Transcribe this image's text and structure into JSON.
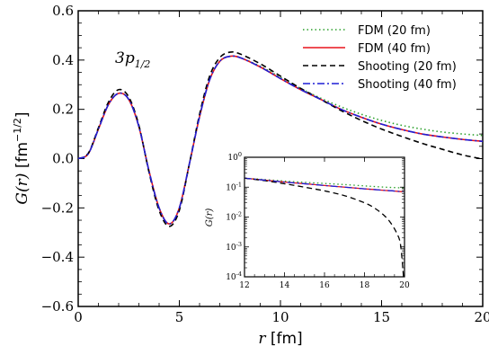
{
  "chart_data": [
    {
      "type": "line",
      "annotation": {
        "main": "3p",
        "sub": "1/2"
      },
      "xlabel": {
        "var": "r",
        "unit": "[fm]"
      },
      "ylabel": {
        "var": "G(r)",
        "unit": "[fm",
        "exp": "−1/2",
        "close": "]"
      },
      "xlim": [
        0,
        20
      ],
      "ylim": [
        -0.6,
        0.6
      ],
      "xticks": [
        0,
        5,
        10,
        15,
        20
      ],
      "xtick_labels": [
        "0",
        "5",
        "10",
        "15",
        "20"
      ],
      "yticks": [
        -0.6,
        -0.4,
        -0.2,
        0.0,
        0.2,
        0.4,
        0.6
      ],
      "ytick_labels": [
        "−0.6",
        "−0.4",
        "−0.2",
        "0.0",
        "0.2",
        "0.4",
        "0.6"
      ],
      "legend_position": "top-right",
      "x": [
        0,
        0.5,
        1.0,
        1.5,
        2.0,
        2.5,
        3.0,
        3.5,
        4.0,
        4.5,
        5.0,
        5.5,
        6.0,
        6.5,
        7.0,
        7.5,
        8.0,
        9.0,
        10.0,
        11.0,
        12.0,
        13.0,
        14.0,
        15.0,
        16.0,
        17.0,
        18.0,
        19.0,
        20.0
      ],
      "series": [
        {
          "name": "FDM (20 fm)",
          "color": "#2ca02c",
          "style": "dotted",
          "values": [
            0.0,
            0.02,
            0.12,
            0.22,
            0.265,
            0.24,
            0.13,
            -0.05,
            -0.2,
            -0.265,
            -0.2,
            -0.02,
            0.17,
            0.32,
            0.395,
            0.415,
            0.41,
            0.375,
            0.33,
            0.285,
            0.245,
            0.21,
            0.18,
            0.155,
            0.135,
            0.12,
            0.108,
            0.1,
            0.094
          ]
        },
        {
          "name": "FDM (40 fm)",
          "color": "#e8141c",
          "style": "solid",
          "values": [
            0.0,
            0.02,
            0.12,
            0.22,
            0.265,
            0.24,
            0.13,
            -0.05,
            -0.2,
            -0.265,
            -0.2,
            -0.02,
            0.17,
            0.32,
            0.395,
            0.415,
            0.41,
            0.372,
            0.325,
            0.28,
            0.24,
            0.2,
            0.168,
            0.14,
            0.118,
            0.1,
            0.088,
            0.078,
            0.07
          ]
        },
        {
          "name": "Shooting (20 fm)",
          "color": "#000000",
          "style": "dashed",
          "values": [
            0.0,
            0.022,
            0.125,
            0.23,
            0.28,
            0.25,
            0.135,
            -0.055,
            -0.21,
            -0.275,
            -0.21,
            -0.02,
            0.18,
            0.335,
            0.41,
            0.432,
            0.425,
            0.385,
            0.335,
            0.285,
            0.24,
            0.195,
            0.155,
            0.12,
            0.09,
            0.062,
            0.038,
            0.015,
            -0.002
          ]
        },
        {
          "name": "Shooting (40 fm)",
          "color": "#1f1fd6",
          "style": "dashdot",
          "values": [
            0.0,
            0.02,
            0.12,
            0.22,
            0.265,
            0.24,
            0.13,
            -0.05,
            -0.2,
            -0.265,
            -0.2,
            -0.02,
            0.17,
            0.32,
            0.395,
            0.415,
            0.41,
            0.372,
            0.325,
            0.28,
            0.24,
            0.2,
            0.168,
            0.14,
            0.118,
            0.1,
            0.088,
            0.078,
            0.07
          ]
        }
      ]
    },
    {
      "type": "line",
      "role": "inset",
      "ylabel": "G(r)",
      "xlim": [
        12,
        20
      ],
      "ylim_log10": [
        -4,
        0
      ],
      "log_y": true,
      "xticks": [
        12,
        14,
        16,
        18,
        20
      ],
      "xtick_labels": [
        "12",
        "14",
        "16",
        "18",
        "20"
      ],
      "ytick_exponents": [
        -4,
        -3,
        -2,
        -1,
        0
      ],
      "ytick_base": "10",
      "x": [
        12,
        13,
        14,
        15,
        16,
        17,
        18,
        18.5,
        19,
        19.3,
        19.6,
        19.8,
        19.95
      ],
      "series": [
        {
          "color": "#2ca02c",
          "style": "dotted",
          "values": [
            0.2,
            0.18,
            0.16,
            0.145,
            0.133,
            0.122,
            0.11,
            0.105,
            0.1,
            0.098,
            0.096,
            0.095,
            0.094
          ]
        },
        {
          "color": "#e8141c",
          "style": "solid",
          "values": [
            0.2,
            0.172,
            0.148,
            0.13,
            0.114,
            0.1,
            0.088,
            0.083,
            0.078,
            0.076,
            0.073,
            0.071,
            0.07
          ]
        },
        {
          "color": "#000000",
          "style": "dashed",
          "values": [
            0.2,
            0.165,
            0.13,
            0.1,
            0.075,
            0.052,
            0.03,
            0.02,
            0.011,
            0.0065,
            0.003,
            0.0012,
            0.0001
          ]
        },
        {
          "color": "#1f1fd6",
          "style": "dashdot",
          "values": [
            0.2,
            0.172,
            0.148,
            0.13,
            0.114,
            0.1,
            0.088,
            0.083,
            0.078,
            0.076,
            0.073,
            0.071,
            0.07
          ]
        }
      ]
    }
  ]
}
